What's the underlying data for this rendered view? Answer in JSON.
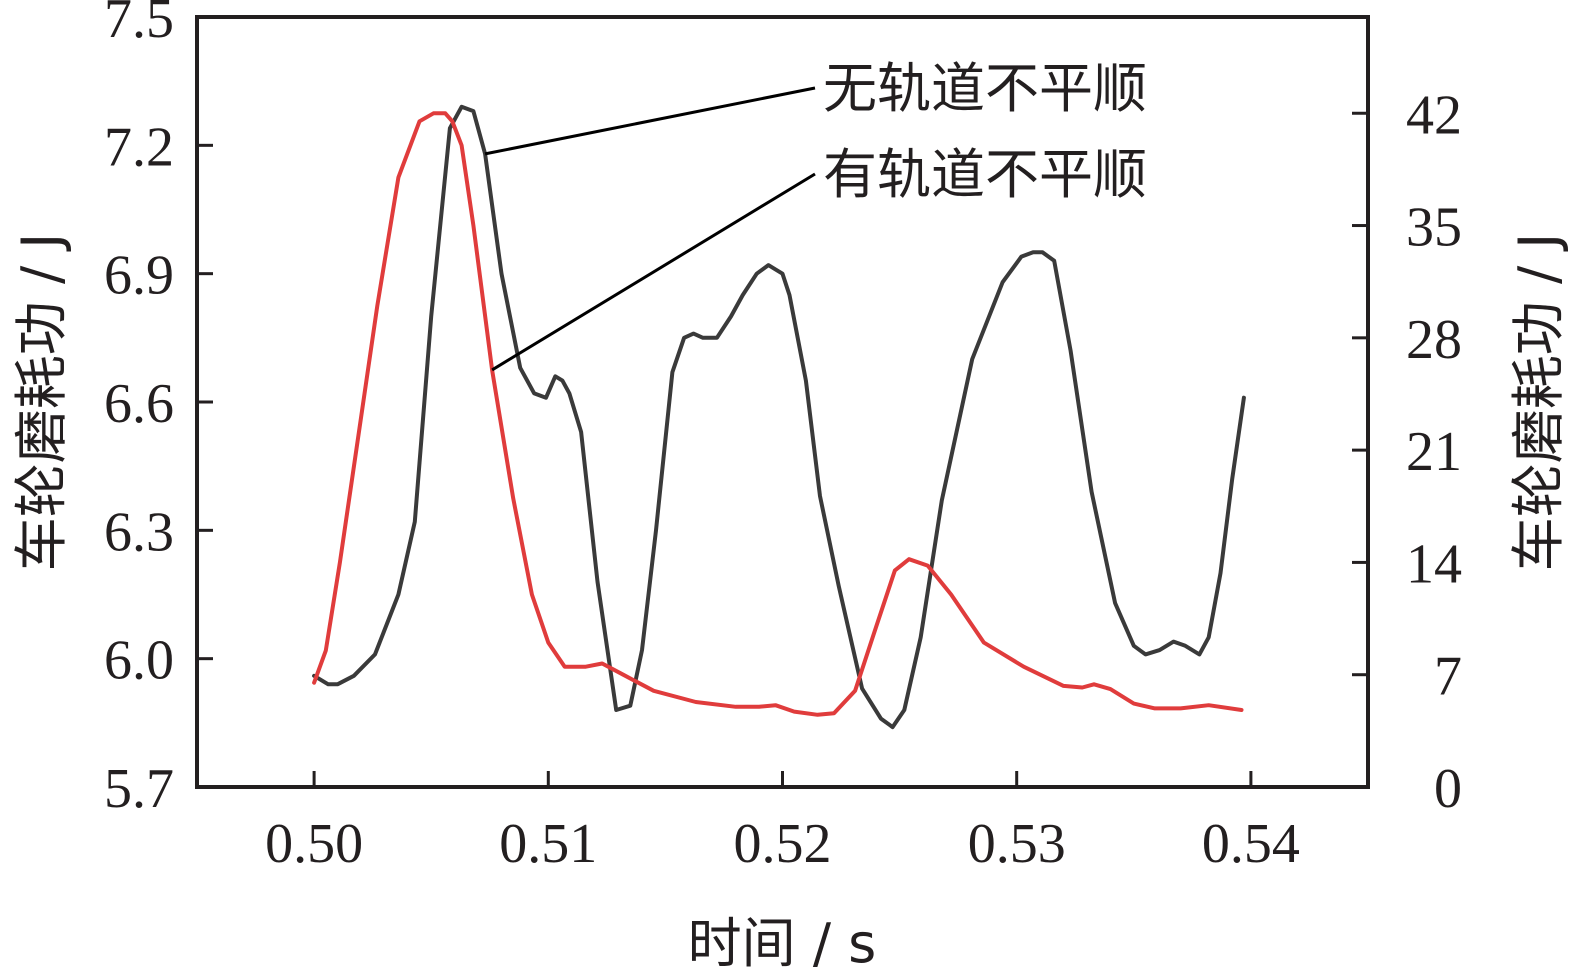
{
  "chart_data": {
    "type": "line",
    "xlabel": "时间 / s",
    "ylabel_left": "车轮磨耗功 / J",
    "ylabel_right": "车轮磨耗功 / J",
    "xlim": [
      0.495,
      0.545
    ],
    "ylim_left": [
      5.7,
      7.5
    ],
    "ylim_right": [
      0,
      48
    ],
    "x_ticks": [
      0.5,
      0.51,
      0.52,
      0.53,
      0.54
    ],
    "x_tick_labels": [
      "0.50",
      "0.51",
      "0.52",
      "0.53",
      "0.54"
    ],
    "y_left_ticks": [
      5.7,
      6.0,
      6.3,
      6.6,
      6.9,
      7.2,
      7.5
    ],
    "y_left_tick_labels": [
      "5.7",
      "6.0",
      "6.3",
      "6.6",
      "6.9",
      "7.2",
      "7.5"
    ],
    "y_right_ticks": [
      0,
      7,
      14,
      21,
      28,
      35,
      42
    ],
    "y_right_tick_labels": [
      "0",
      "7",
      "14",
      "21",
      "28",
      "35",
      "42"
    ],
    "grid": false,
    "series": [
      {
        "name": "无轨道不平顺",
        "axis": "left",
        "color": "#3a3a3a",
        "x": [
          0.5,
          0.5006,
          0.501,
          0.5017,
          0.5026,
          0.5036,
          0.5043,
          0.505,
          0.5058,
          0.5063,
          0.5068,
          0.5073,
          0.508,
          0.5088,
          0.5094,
          0.5099,
          0.5103,
          0.5106,
          0.5109,
          0.5114,
          0.5121,
          0.5129,
          0.5135,
          0.514,
          0.5146,
          0.5153,
          0.5158,
          0.5162,
          0.5166,
          0.5172,
          0.5178,
          0.5183,
          0.5189,
          0.5194,
          0.5197,
          0.52,
          0.5203,
          0.521,
          0.5216,
          0.5224,
          0.5234,
          0.5242,
          0.5247,
          0.5252,
          0.5259,
          0.5268,
          0.5281,
          0.5294,
          0.5302,
          0.5307,
          0.5311,
          0.5316,
          0.5323,
          0.5332,
          0.5342,
          0.535,
          0.5355,
          0.5361,
          0.5367,
          0.5372,
          0.5378,
          0.5382,
          0.5387,
          0.5392,
          0.5397
        ],
        "y": [
          5.96,
          5.94,
          5.94,
          5.96,
          6.01,
          6.15,
          6.32,
          6.8,
          7.24,
          7.29,
          7.28,
          7.18,
          6.9,
          6.68,
          6.62,
          6.61,
          6.66,
          6.65,
          6.62,
          6.53,
          6.18,
          5.88,
          5.89,
          6.02,
          6.3,
          6.67,
          6.75,
          6.76,
          6.75,
          6.75,
          6.8,
          6.85,
          6.9,
          6.92,
          6.91,
          6.9,
          6.85,
          6.65,
          6.38,
          6.17,
          5.93,
          5.86,
          5.84,
          5.88,
          6.05,
          6.37,
          6.7,
          6.88,
          6.94,
          6.95,
          6.95,
          6.93,
          6.72,
          6.39,
          6.13,
          6.03,
          6.01,
          6.02,
          6.04,
          6.03,
          6.01,
          6.05,
          6.2,
          6.42,
          6.61
        ]
      },
      {
        "name": "有轨道不平顺",
        "axis": "right",
        "color": "#e03c3c",
        "x": [
          0.5,
          0.5005,
          0.5011,
          0.5018,
          0.5027,
          0.5036,
          0.5045,
          0.5051,
          0.5056,
          0.5059,
          0.5063,
          0.5068,
          0.5076,
          0.5085,
          0.5093,
          0.51,
          0.5107,
          0.5116,
          0.5123,
          0.5132,
          0.5145,
          0.5163,
          0.518,
          0.519,
          0.5197,
          0.5205,
          0.5215,
          0.5222,
          0.5231,
          0.524,
          0.5248,
          0.5254,
          0.5262,
          0.5272,
          0.5286,
          0.5303,
          0.532,
          0.5328,
          0.5333,
          0.534,
          0.535,
          0.5359,
          0.537,
          0.5382,
          0.5396
        ],
        "y": [
          6.5,
          8.5,
          14.0,
          21.0,
          30.0,
          38.0,
          41.5,
          42.0,
          42.0,
          41.5,
          40.0,
          35.0,
          26.0,
          18.0,
          12.0,
          9.0,
          7.5,
          7.5,
          7.7,
          7.0,
          6.0,
          5.3,
          5.0,
          5.0,
          5.1,
          4.7,
          4.5,
          4.6,
          6.0,
          10.0,
          13.5,
          14.2,
          13.8,
          12.0,
          9.0,
          7.5,
          6.3,
          6.2,
          6.4,
          6.1,
          5.2,
          4.9,
          4.9,
          5.1,
          4.8
        ]
      }
    ],
    "annotations": [
      {
        "text": "无轨道不平顺",
        "series": 0,
        "point": [
          0.5073,
          7.18
        ]
      },
      {
        "text": "有轨道不平顺",
        "series": 1,
        "point": [
          0.5076,
          26.0
        ]
      }
    ]
  }
}
